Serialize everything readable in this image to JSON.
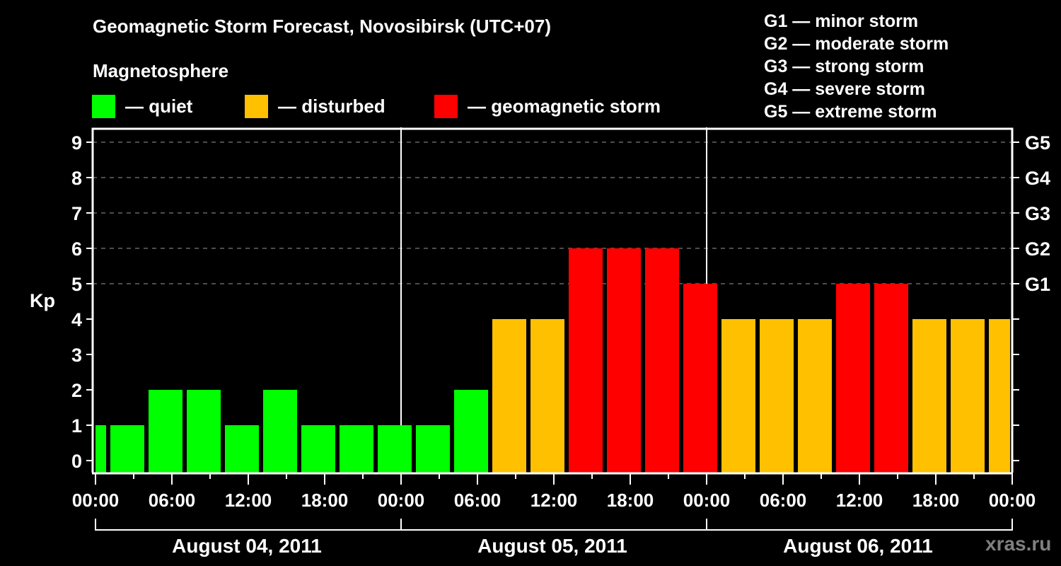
{
  "header": {
    "title": "Geomagnetic Storm Forecast, Novosibirsk (UTC+07)",
    "subtitle": "Magnetosphere"
  },
  "legend": [
    {
      "label": "— quiet",
      "color": "#00FF00"
    },
    {
      "label": "— disturbed",
      "color": "#FFC000"
    },
    {
      "label": "— geomagnetic storm",
      "color": "#FF0000"
    }
  ],
  "g_scale": [
    "G1 — minor storm",
    "G2 — moderate storm",
    "G3 — strong storm",
    "G4 — severe storm",
    "G5 — extreme storm"
  ],
  "watermark": "xras.ru",
  "chart_data": {
    "type": "bar",
    "title": "Geomagnetic Storm Forecast, Novosibirsk (UTC+07)",
    "xlabel": "",
    "ylabel": "Kp",
    "ylim": [
      0,
      9
    ],
    "y_ticks": [
      0,
      1,
      2,
      3,
      4,
      5,
      6,
      7,
      8,
      9
    ],
    "y2_ticks": [
      {
        "kp": 5,
        "label": "G1"
      },
      {
        "kp": 6,
        "label": "G2"
      },
      {
        "kp": 7,
        "label": "G3"
      },
      {
        "kp": 8,
        "label": "G4"
      },
      {
        "kp": 9,
        "label": "G5"
      }
    ],
    "grid": "dashed horizontal at Kp 5-9",
    "x_tick_labels": [
      "00:00",
      "06:00",
      "12:00",
      "18:00",
      "00:00",
      "06:00",
      "12:00",
      "18:00",
      "00:00",
      "06:00",
      "12:00",
      "18:00",
      "00:00"
    ],
    "dates": [
      "August 04, 2011",
      "August 05, 2011",
      "August 06, 2011"
    ],
    "legend": [
      "quiet",
      "disturbed",
      "geomagnetic storm"
    ],
    "categories": [
      "Aug 04 00-03",
      "Aug 04 03-06",
      "Aug 04 06-09",
      "Aug 04 09-12",
      "Aug 04 12-15",
      "Aug 04 15-18",
      "Aug 04 18-21",
      "Aug 04 21-24",
      "Aug 05 00-03",
      "Aug 05 03-06",
      "Aug 05 06-09",
      "Aug 05 09-12",
      "Aug 05 12-15",
      "Aug 05 15-18",
      "Aug 05 18-21",
      "Aug 05 21-24",
      "Aug 06 00-03",
      "Aug 06 03-06",
      "Aug 06 06-09",
      "Aug 06 09-12",
      "Aug 06 12-15",
      "Aug 06 15-18",
      "Aug 06 18-21",
      "Aug 06 21-24",
      "Aug 07 00-03"
    ],
    "values": [
      1,
      1,
      2,
      2,
      1,
      2,
      1,
      1,
      1,
      1,
      2,
      4,
      4,
      6,
      6,
      6,
      5,
      4,
      4,
      4,
      5,
      5,
      4,
      4,
      4
    ],
    "status": [
      "quiet",
      "quiet",
      "quiet",
      "quiet",
      "quiet",
      "quiet",
      "quiet",
      "quiet",
      "quiet",
      "quiet",
      "quiet",
      "disturbed",
      "disturbed",
      "storm",
      "storm",
      "storm",
      "storm",
      "disturbed",
      "disturbed",
      "disturbed",
      "storm",
      "storm",
      "disturbed",
      "disturbed",
      "disturbed"
    ],
    "colors": {
      "quiet": "#00FF00",
      "disturbed": "#FFC000",
      "storm": "#FF0000",
      "grid": "#9a9a9a",
      "axis": "#FFFFFF"
    }
  }
}
